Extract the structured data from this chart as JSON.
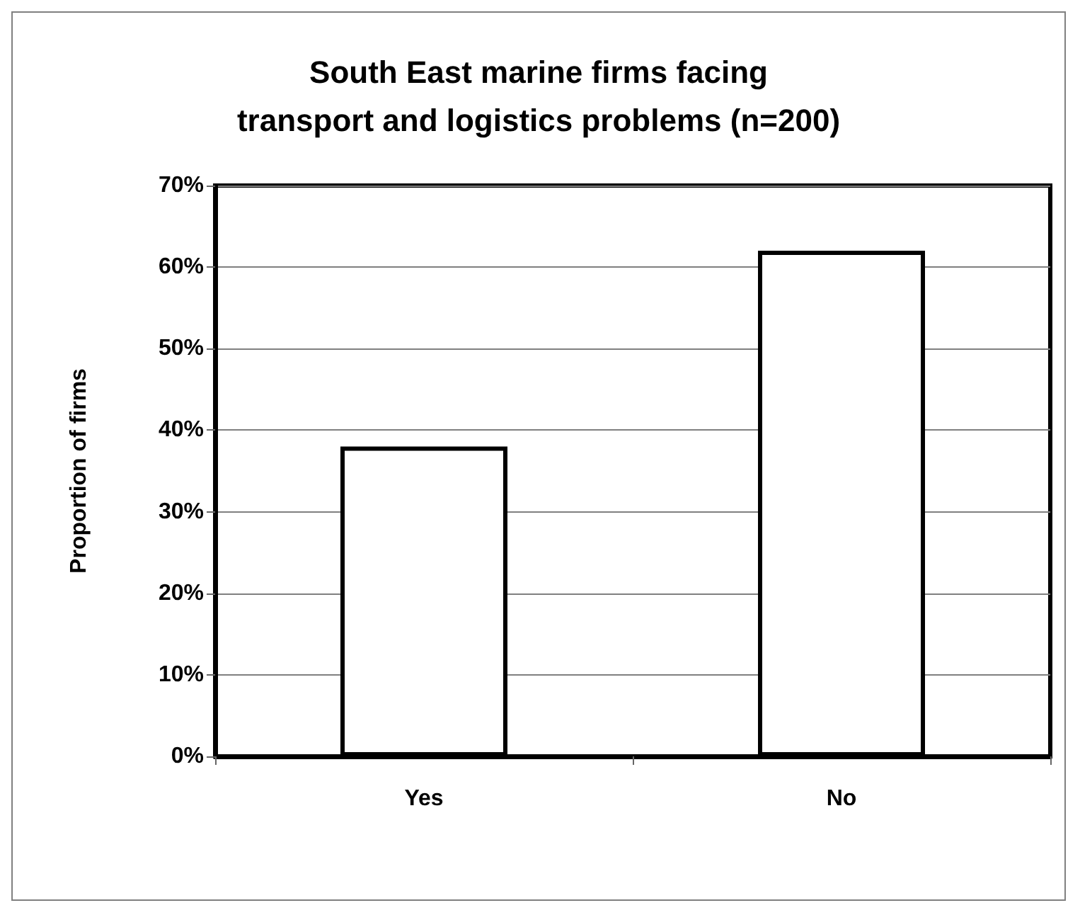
{
  "chart_data": {
    "type": "bar",
    "title": "South East marine firms facing\ntransport and logistics problems (n=200)",
    "ylabel": "Proportion of firms",
    "categories": [
      "Yes",
      "No"
    ],
    "values": [
      38,
      62
    ],
    "color": "#ffffff",
    "ylim": [
      0,
      70
    ],
    "yticks": [
      {
        "value": 0,
        "label": "0%"
      },
      {
        "value": 10,
        "label": "10%"
      },
      {
        "value": 20,
        "label": "20%"
      },
      {
        "value": 30,
        "label": "30%"
      },
      {
        "value": 40,
        "label": "40%"
      },
      {
        "value": 50,
        "label": "50%"
      },
      {
        "value": 60,
        "label": "60%"
      },
      {
        "value": 70,
        "label": "70%"
      }
    ],
    "grid": "y"
  }
}
